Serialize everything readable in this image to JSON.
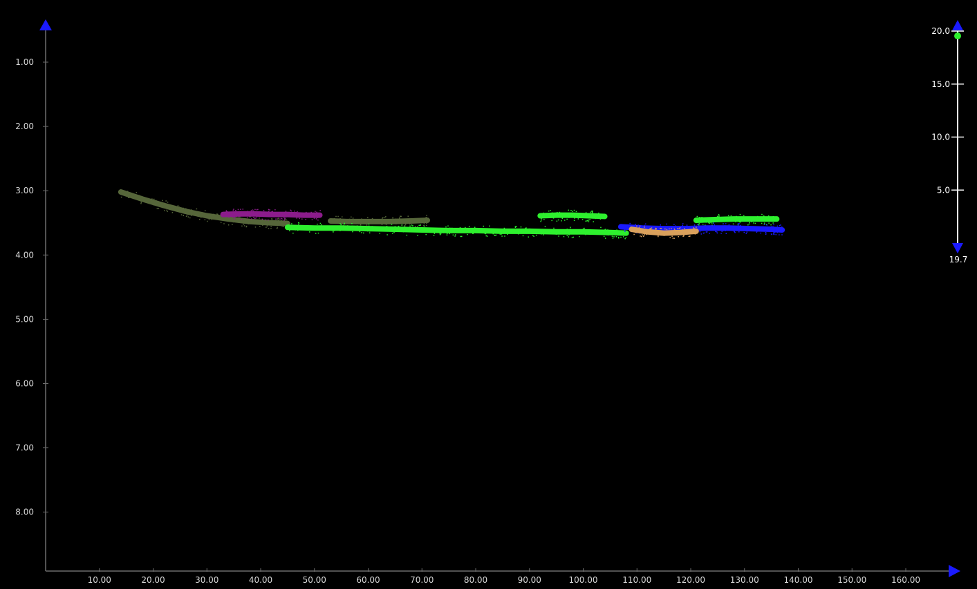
{
  "chart_data": {
    "type": "scatter",
    "title": "",
    "xlabel": "",
    "ylabel": "",
    "x_range": [
      0,
      160
    ],
    "y_range": [
      0.6,
      8.9
    ],
    "y_inverted": true,
    "grid": false,
    "x_ticks": [
      "10.00",
      "20.00",
      "30.00",
      "40.00",
      "50.00",
      "60.00",
      "70.00",
      "80.00",
      "90.00",
      "100.00",
      "110.00",
      "120.00",
      "130.00",
      "140.00",
      "150.00",
      "160.00"
    ],
    "y_ticks": [
      "1.00",
      "2.00",
      "3.00",
      "4.00",
      "5.00",
      "6.00",
      "7.00",
      "8.00"
    ],
    "series": [
      {
        "color": "#56663a",
        "x": [
          14,
          18,
          22,
          26,
          30,
          34,
          38,
          42,
          45
        ],
        "y": [
          3.02,
          3.13,
          3.23,
          3.32,
          3.39,
          3.44,
          3.48,
          3.5,
          3.51
        ]
      },
      {
        "color": "#8c1c8c",
        "x": [
          33,
          36,
          39,
          42,
          45,
          48,
          51
        ],
        "y": [
          3.37,
          3.36,
          3.36,
          3.37,
          3.37,
          3.38,
          3.38
        ]
      },
      {
        "color": "#56663a",
        "x": [
          53,
          56,
          60,
          64,
          68,
          71
        ],
        "y": [
          3.47,
          3.48,
          3.48,
          3.48,
          3.47,
          3.46
        ]
      },
      {
        "color": "#2ef02e",
        "x": [
          45,
          50,
          55,
          60,
          65,
          70,
          75,
          80,
          85,
          90,
          95,
          100,
          105,
          108
        ],
        "y": [
          3.57,
          3.58,
          3.58,
          3.59,
          3.6,
          3.61,
          3.62,
          3.62,
          3.63,
          3.63,
          3.64,
          3.64,
          3.65,
          3.66
        ]
      },
      {
        "color": "#2ef02e",
        "x": [
          92,
          95,
          98,
          101,
          104
        ],
        "y": [
          3.39,
          3.38,
          3.38,
          3.39,
          3.4
        ]
      },
      {
        "color": "#2ef02e",
        "x": [
          121,
          124,
          128,
          132,
          136
        ],
        "y": [
          3.46,
          3.45,
          3.44,
          3.44,
          3.44
        ]
      },
      {
        "color": "#1a1aff",
        "x": [
          107,
          111,
          115,
          119,
          123,
          127,
          131,
          135,
          137
        ],
        "y": [
          3.56,
          3.58,
          3.59,
          3.59,
          3.58,
          3.58,
          3.59,
          3.6,
          3.61
        ]
      },
      {
        "color": "#d9a05c",
        "x": [
          109,
          112,
          115,
          118,
          121
        ],
        "y": [
          3.6,
          3.64,
          3.66,
          3.65,
          3.63
        ]
      }
    ]
  },
  "color_scale": {
    "ticks": [
      "20.0",
      "15.0",
      "10.0",
      "5.0"
    ],
    "max_value": 20.0,
    "bottom_value": "19.7",
    "handle_color": "#2ef02e",
    "arrow_color": "#1a1aff"
  },
  "colors": {
    "background": "#000000",
    "axis": "#6e6e6e",
    "arrow": "#1a1aff"
  }
}
